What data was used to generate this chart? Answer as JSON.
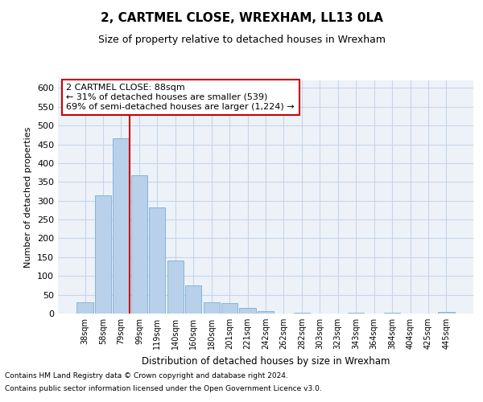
{
  "title": "2, CARTMEL CLOSE, WREXHAM, LL13 0LA",
  "subtitle": "Size of property relative to detached houses in Wrexham",
  "xlabel": "Distribution of detached houses by size in Wrexham",
  "ylabel": "Number of detached properties",
  "categories": [
    "38sqm",
    "58sqm",
    "79sqm",
    "99sqm",
    "119sqm",
    "140sqm",
    "160sqm",
    "180sqm",
    "201sqm",
    "221sqm",
    "242sqm",
    "262sqm",
    "282sqm",
    "303sqm",
    "323sqm",
    "343sqm",
    "364sqm",
    "384sqm",
    "404sqm",
    "425sqm",
    "445sqm"
  ],
  "values": [
    31,
    315,
    467,
    367,
    283,
    141,
    75,
    31,
    27,
    15,
    7,
    0,
    3,
    0,
    0,
    3,
    0,
    3,
    0,
    0,
    5
  ],
  "bar_color": "#b8d0ea",
  "bar_edge_color": "#7aadd4",
  "grid_color": "#c8d4e8",
  "background_color": "#edf2f9",
  "annotation_box_color": "#cc0000",
  "annotation_line_color": "#cc0000",
  "annotation_line_index": 2,
  "annotation_text_line1": "2 CARTMEL CLOSE: 88sqm",
  "annotation_text_line2": "← 31% of detached houses are smaller (539)",
  "annotation_text_line3": "69% of semi-detached houses are larger (1,224) →",
  "ylim": [
    0,
    620
  ],
  "yticks": [
    0,
    50,
    100,
    150,
    200,
    250,
    300,
    350,
    400,
    450,
    500,
    550,
    600
  ],
  "footnote1": "Contains HM Land Registry data © Crown copyright and database right 2024.",
  "footnote2": "Contains public sector information licensed under the Open Government Licence v3.0."
}
